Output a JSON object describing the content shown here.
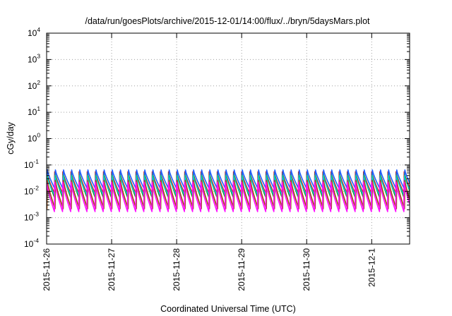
{
  "chart_data": {
    "type": "line",
    "title": "/data/run/goesPlots/archive/2015-12-01/14:00/flux/../bryn/5daysMars.plot",
    "xlabel": "Coordinated Universal Time (UTC)",
    "ylabel": "cGy/day",
    "yscale": "log",
    "ylim": [
      0.0001,
      10000
    ],
    "y_ticks": [
      {
        "base": "10",
        "exp": "-4",
        "value": 0.0001
      },
      {
        "base": "10",
        "exp": "-3",
        "value": 0.001
      },
      {
        "base": "10",
        "exp": "-2",
        "value": 0.01
      },
      {
        "base": "10",
        "exp": "-1",
        "value": 0.1
      },
      {
        "base": "10",
        "exp": "0",
        "value": 1
      },
      {
        "base": "10",
        "exp": "1",
        "value": 10
      },
      {
        "base": "10",
        "exp": "2",
        "value": 100
      },
      {
        "base": "10",
        "exp": "3",
        "value": 1000
      },
      {
        "base": "10",
        "exp": "4",
        "value": 10000
      }
    ],
    "xlim": [
      "2015-11-26",
      "2015-12-01T14:00"
    ],
    "x_ticks": [
      "2015-11-26",
      "2015-11-27",
      "2015-11-28",
      "2015-11-29",
      "2015-11-30",
      "2015-12-1"
    ],
    "grid": true,
    "series": [
      {
        "color": "#e01010",
        "peak": 0.055,
        "trough": 0.0085
      },
      {
        "color": "#1a9a1a",
        "peak": 0.05,
        "trough": 0.0055
      },
      {
        "color": "#2060ff",
        "peak": 0.065,
        "trough": 0.012
      },
      {
        "color": "#ff00ff",
        "peak": 0.032,
        "trough": 0.0025
      },
      {
        "color": "#00c8c8",
        "peak": 0.04,
        "trough": 0.007
      },
      {
        "color": "#a05010",
        "peak": 0.026,
        "trough": 0.0022
      },
      {
        "color": "#ff10ff",
        "peak": 0.022,
        "trough": 0.0017
      }
    ],
    "cycle_hours": 3
  }
}
